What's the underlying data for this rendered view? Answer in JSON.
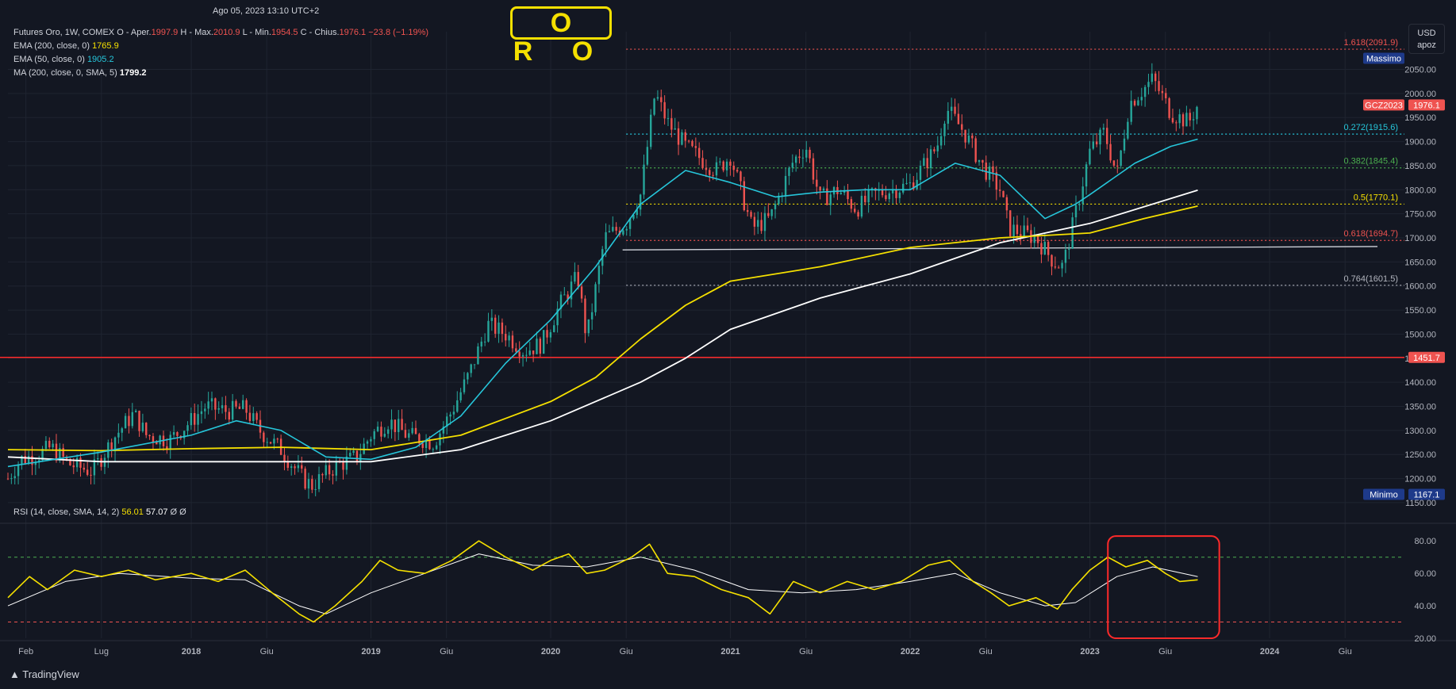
{
  "header": {
    "timestamp": "Ago 05, 2023 13:10 UTC+2",
    "instrument": "Futures Oro, 1W, COMEX",
    "open_label": "O - Aper.",
    "open_value": "1997.9",
    "high_label": "H - Max.",
    "high_value": "2010.9",
    "low_label": "L - Min.",
    "low_value": "1954.5",
    "close_label": "C - Chius.",
    "close_value": "1976.1",
    "change": "−23.8 (−1.19%)",
    "indicators": [
      {
        "label": "EMA (200, close, 0)",
        "value": "1765.9",
        "color": "#f5e000"
      },
      {
        "label": "EMA (50, close, 0)",
        "value": "1905.2",
        "color": "#26c6da"
      },
      {
        "label": "MA (200, close, 0, SMA, 5)",
        "value": "1799.2",
        "color": "#ffffff"
      }
    ]
  },
  "title_badge": "O R O",
  "currency_button": {
    "line1": "USD",
    "line2": "apoz"
  },
  "branding": "TradingView",
  "colors": {
    "up": "#26a69a",
    "down": "#ef5350",
    "ema200": "#f5e000",
    "ema50": "#26c6da",
    "ma200": "#ffffff",
    "rsi": "#f5e000",
    "bg": "#131722"
  },
  "chart_data": [
    {
      "type": "candlestick",
      "title": "Futures Oro, 1W, COMEX",
      "ylim": [
        1140,
        2120
      ],
      "y_ticks": [
        1150,
        1200,
        1250,
        1300,
        1350,
        1400,
        1450,
        1500,
        1550,
        1600,
        1650,
        1700,
        1750,
        1800,
        1850,
        1900,
        1950,
        2000,
        2050
      ],
      "x_ticks": [
        {
          "label": "Feb",
          "t": 2017.08
        },
        {
          "label": "Lug",
          "t": 2017.5
        },
        {
          "label": "2018",
          "t": 2018.0
        },
        {
          "label": "Giu",
          "t": 2018.42
        },
        {
          "label": "2019",
          "t": 2019.0
        },
        {
          "label": "Giu",
          "t": 2019.42
        },
        {
          "label": "2020",
          "t": 2020.0
        },
        {
          "label": "Giu",
          "t": 2020.42
        },
        {
          "label": "2021",
          "t": 2021.0
        },
        {
          "label": "Giu",
          "t": 2021.42
        },
        {
          "label": "2022",
          "t": 2022.0
        },
        {
          "label": "Giu",
          "t": 2022.42
        },
        {
          "label": "2023",
          "t": 2023.0
        },
        {
          "label": "Giu",
          "t": 2023.42
        },
        {
          "label": "2024",
          "t": 2024.0
        },
        {
          "label": "Giu",
          "t": 2024.42
        }
      ],
      "price_path": [
        [
          2016.98,
          1200
        ],
        [
          2017.05,
          1240
        ],
        [
          2017.15,
          1250
        ],
        [
          2017.22,
          1265
        ],
        [
          2017.32,
          1230
        ],
        [
          2017.45,
          1215
        ],
        [
          2017.58,
          1290
        ],
        [
          2017.68,
          1335
        ],
        [
          2017.75,
          1290
        ],
        [
          2017.88,
          1280
        ],
        [
          2018.0,
          1320
        ],
        [
          2018.08,
          1350
        ],
        [
          2018.2,
          1340
        ],
        [
          2018.3,
          1345
        ],
        [
          2018.38,
          1300
        ],
        [
          2018.5,
          1260
        ],
        [
          2018.62,
          1200
        ],
        [
          2018.67,
          1185
        ],
        [
          2018.8,
          1225
        ],
        [
          2018.92,
          1245
        ],
        [
          2019.0,
          1290
        ],
        [
          2019.1,
          1320
        ],
        [
          2019.2,
          1290
        ],
        [
          2019.35,
          1275
        ],
        [
          2019.45,
          1340
        ],
        [
          2019.55,
          1420
        ],
        [
          2019.65,
          1520
        ],
        [
          2019.75,
          1500
        ],
        [
          2019.85,
          1465
        ],
        [
          2019.95,
          1480
        ],
        [
          2020.05,
          1560
        ],
        [
          2020.15,
          1620
        ],
        [
          2020.2,
          1490
        ],
        [
          2020.3,
          1700
        ],
        [
          2020.42,
          1730
        ],
        [
          2020.5,
          1790
        ],
        [
          2020.58,
          2000
        ],
        [
          2020.65,
          1940
        ],
        [
          2020.75,
          1890
        ],
        [
          2020.85,
          1860
        ],
        [
          2020.92,
          1840
        ],
        [
          2021.0,
          1870
        ],
        [
          2021.12,
          1720
        ],
        [
          2021.22,
          1740
        ],
        [
          2021.35,
          1860
        ],
        [
          2021.42,
          1890
        ],
        [
          2021.5,
          1780
        ],
        [
          2021.6,
          1800
        ],
        [
          2021.7,
          1760
        ],
        [
          2021.8,
          1790
        ],
        [
          2021.9,
          1800
        ],
        [
          2022.0,
          1810
        ],
        [
          2022.15,
          1890
        ],
        [
          2022.2,
          1970
        ],
        [
          2022.3,
          1920
        ],
        [
          2022.4,
          1850
        ],
        [
          2022.5,
          1800
        ],
        [
          2022.55,
          1720
        ],
        [
          2022.7,
          1700
        ],
        [
          2022.8,
          1650
        ],
        [
          2022.85,
          1640
        ],
        [
          2022.92,
          1750
        ],
        [
          2023.0,
          1880
        ],
        [
          2023.08,
          1920
        ],
        [
          2023.15,
          1830
        ],
        [
          2023.22,
          1980
        ],
        [
          2023.3,
          2010
        ],
        [
          2023.35,
          2030
        ],
        [
          2023.45,
          1960
        ],
        [
          2023.55,
          1940
        ],
        [
          2023.6,
          1976
        ]
      ],
      "ema50_path": [
        [
          2016.98,
          1225
        ],
        [
          2017.5,
          1255
        ],
        [
          2018.0,
          1290
        ],
        [
          2018.25,
          1320
        ],
        [
          2018.5,
          1300
        ],
        [
          2018.75,
          1245
        ],
        [
          2019.0,
          1240
        ],
        [
          2019.25,
          1265
        ],
        [
          2019.5,
          1330
        ],
        [
          2019.75,
          1440
        ],
        [
          2020.0,
          1530
        ],
        [
          2020.25,
          1640
        ],
        [
          2020.5,
          1770
        ],
        [
          2020.75,
          1840
        ],
        [
          2021.0,
          1815
        ],
        [
          2021.25,
          1785
        ],
        [
          2021.5,
          1795
        ],
        [
          2021.75,
          1800
        ],
        [
          2022.0,
          1800
        ],
        [
          2022.25,
          1855
        ],
        [
          2022.5,
          1830
        ],
        [
          2022.75,
          1740
        ],
        [
          2022.92,
          1770
        ],
        [
          2023.0,
          1790
        ],
        [
          2023.25,
          1855
        ],
        [
          2023.45,
          1890
        ],
        [
          2023.6,
          1905
        ]
      ],
      "ema200_path": [
        [
          2016.98,
          1260
        ],
        [
          2017.5,
          1258
        ],
        [
          2018.0,
          1262
        ],
        [
          2018.5,
          1265
        ],
        [
          2019.0,
          1260
        ],
        [
          2019.5,
          1290
        ],
        [
          2020.0,
          1360
        ],
        [
          2020.25,
          1410
        ],
        [
          2020.5,
          1490
        ],
        [
          2020.75,
          1560
        ],
        [
          2021.0,
          1610
        ],
        [
          2021.5,
          1640
        ],
        [
          2022.0,
          1680
        ],
        [
          2022.5,
          1700
        ],
        [
          2023.0,
          1710
        ],
        [
          2023.3,
          1740
        ],
        [
          2023.6,
          1766
        ]
      ],
      "ma200_path": [
        [
          2016.98,
          1245
        ],
        [
          2017.5,
          1235
        ],
        [
          2018.0,
          1235
        ],
        [
          2018.5,
          1235
        ],
        [
          2019.0,
          1235
        ],
        [
          2019.5,
          1260
        ],
        [
          2020.0,
          1320
        ],
        [
          2020.5,
          1400
        ],
        [
          2020.75,
          1450
        ],
        [
          2021.0,
          1510
        ],
        [
          2021.5,
          1575
        ],
        [
          2022.0,
          1625
        ],
        [
          2022.5,
          1690
        ],
        [
          2023.0,
          1730
        ],
        [
          2023.6,
          1799
        ]
      ],
      "horizontal_levels": [
        {
          "label": "1.618(2091.9)",
          "value": 2091.9,
          "color": "#ef5350",
          "style": "dotted"
        },
        {
          "label": "0.272(1915.6)",
          "value": 1915.6,
          "color": "#26c6da",
          "style": "dotted"
        },
        {
          "label": "0.382(1845.4)",
          "value": 1845.4,
          "color": "#4caf50",
          "style": "dotted"
        },
        {
          "label": "0.5(1770.1)",
          "value": 1770.1,
          "color": "#f5e000",
          "style": "dotted"
        },
        {
          "label": "0.618(1694.7)",
          "value": 1694.7,
          "color": "#ef5350",
          "style": "dotted"
        },
        {
          "label": "0.764(1601.5)",
          "value": 1601.5,
          "color": "#b2b5be",
          "style": "dotted"
        },
        {
          "label": "",
          "value": 1451.7,
          "color": "#ff2a2a",
          "style": "solid"
        }
      ],
      "support_line": {
        "from": [
          2020.4,
          1675
        ],
        "to": [
          2024.6,
          1682
        ],
        "color": "#d1d4dc"
      },
      "price_tags": [
        {
          "label": "Massimo",
          "value": 2073,
          "color": "#1e3a8a"
        },
        {
          "label": "GCZ2023",
          "value": 1976.1,
          "color": "#ef5350"
        },
        {
          "label": "1976.1",
          "value": 1976.1,
          "color": "#ef5350"
        },
        {
          "label": "1451.7",
          "value": 1451.7,
          "color": "#ef5350"
        },
        {
          "label": "Minimo",
          "value": 1167.1,
          "color": "#1e3a8a"
        },
        {
          "label": "1167.1",
          "value": 1167.1,
          "color": "#1e3a8a"
        }
      ]
    },
    {
      "type": "line",
      "title": "RSI (14, close, SMA, 14, 2)",
      "values_text": [
        "56.01",
        "57.07",
        "Ø",
        "Ø"
      ],
      "ylim": [
        20,
        85
      ],
      "y_ticks": [
        20,
        40,
        60,
        80
      ],
      "bands": [
        70,
        30
      ],
      "rsi_path": [
        [
          2016.98,
          45
        ],
        [
          2017.1,
          58
        ],
        [
          2017.2,
          50
        ],
        [
          2017.35,
          62
        ],
        [
          2017.5,
          58
        ],
        [
          2017.65,
          62
        ],
        [
          2017.8,
          56
        ],
        [
          2018.0,
          60
        ],
        [
          2018.15,
          55
        ],
        [
          2018.3,
          62
        ],
        [
          2018.45,
          48
        ],
        [
          2018.6,
          35
        ],
        [
          2018.68,
          30
        ],
        [
          2018.8,
          40
        ],
        [
          2018.95,
          55
        ],
        [
          2019.05,
          68
        ],
        [
          2019.15,
          62
        ],
        [
          2019.3,
          60
        ],
        [
          2019.45,
          68
        ],
        [
          2019.6,
          80
        ],
        [
          2019.75,
          70
        ],
        [
          2019.9,
          62
        ],
        [
          2020.0,
          68
        ],
        [
          2020.1,
          72
        ],
        [
          2020.2,
          60
        ],
        [
          2020.3,
          62
        ],
        [
          2020.45,
          70
        ],
        [
          2020.55,
          78
        ],
        [
          2020.65,
          60
        ],
        [
          2020.8,
          58
        ],
        [
          2020.95,
          50
        ],
        [
          2021.1,
          45
        ],
        [
          2021.22,
          35
        ],
        [
          2021.35,
          55
        ],
        [
          2021.5,
          48
        ],
        [
          2021.65,
          55
        ],
        [
          2021.8,
          50
        ],
        [
          2021.95,
          55
        ],
        [
          2022.1,
          65
        ],
        [
          2022.22,
          68
        ],
        [
          2022.35,
          55
        ],
        [
          2022.45,
          48
        ],
        [
          2022.55,
          40
        ],
        [
          2022.7,
          45
        ],
        [
          2022.82,
          38
        ],
        [
          2022.9,
          50
        ],
        [
          2023.0,
          62
        ],
        [
          2023.1,
          70
        ],
        [
          2023.2,
          64
        ],
        [
          2023.32,
          68
        ],
        [
          2023.42,
          60
        ],
        [
          2023.5,
          55
        ],
        [
          2023.6,
          56
        ]
      ],
      "rsi_sma_path": [
        [
          2016.98,
          40
        ],
        [
          2017.3,
          55
        ],
        [
          2017.6,
          60
        ],
        [
          2018.0,
          57
        ],
        [
          2018.3,
          56
        ],
        [
          2018.6,
          40
        ],
        [
          2018.75,
          35
        ],
        [
          2019.0,
          48
        ],
        [
          2019.3,
          60
        ],
        [
          2019.6,
          72
        ],
        [
          2019.9,
          65
        ],
        [
          2020.2,
          64
        ],
        [
          2020.5,
          70
        ],
        [
          2020.8,
          62
        ],
        [
          2021.1,
          50
        ],
        [
          2021.4,
          48
        ],
        [
          2021.7,
          50
        ],
        [
          2022.0,
          55
        ],
        [
          2022.25,
          60
        ],
        [
          2022.5,
          48
        ],
        [
          2022.75,
          40
        ],
        [
          2022.92,
          42
        ],
        [
          2023.15,
          58
        ],
        [
          2023.35,
          64
        ],
        [
          2023.6,
          58
        ]
      ],
      "annotation_box": {
        "from": [
          2023.1,
          20
        ],
        "to": [
          2023.72,
          83
        ],
        "color": "#ff2a2a"
      }
    }
  ]
}
